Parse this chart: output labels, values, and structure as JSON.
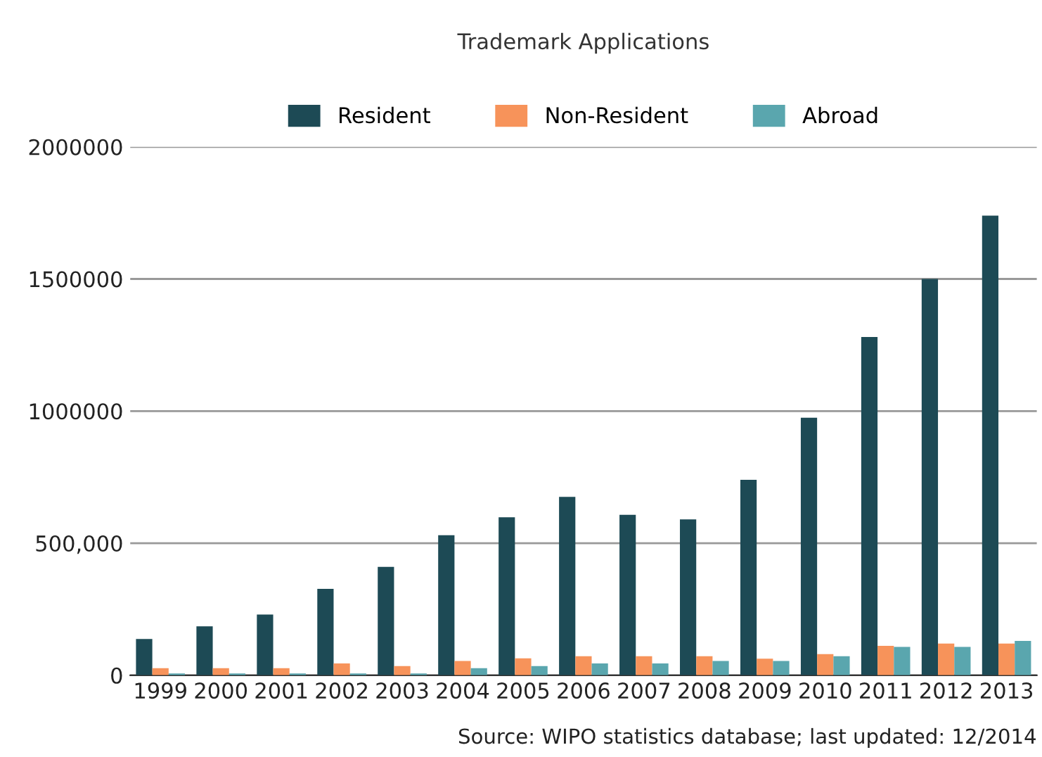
{
  "chart_data": {
    "type": "bar",
    "title": "Trademark Applications",
    "categories": [
      "1999",
      "2000",
      "2001",
      "2002",
      "2003",
      "2004",
      "2005",
      "2006",
      "2007",
      "2008",
      "2009",
      "2010",
      "2011",
      "2012",
      "2013"
    ],
    "series": [
      {
        "name": "Resident",
        "color": "#1d4a55",
        "values": [
          137000,
          185000,
          230000,
          327000,
          410000,
          530000,
          598000,
          675000,
          607000,
          590000,
          740000,
          975000,
          1280000,
          1500000,
          1740000
        ]
      },
      {
        "name": "Non-Resident",
        "color": "#f7935a",
        "values": [
          27000,
          27000,
          27000,
          45000,
          35000,
          54000,
          64000,
          72000,
          72000,
          72000,
          63000,
          80000,
          111000,
          120000,
          120000
        ]
      },
      {
        "name": "Abroad",
        "color": "#5aa6ae",
        "values": [
          7000,
          7000,
          7000,
          7000,
          7000,
          27000,
          35000,
          45000,
          45000,
          54000,
          54000,
          72000,
          107000,
          107000,
          130000
        ]
      }
    ],
    "ylim": [
      0,
      2000000
    ],
    "yticks": [
      0,
      {
        "value": 500000,
        "label": "500,000"
      },
      1000000,
      1500000,
      2000000
    ],
    "grid": "y",
    "legend": "top",
    "annotations": [
      "Source: WIPO statistics database; last updated: 12/2014"
    ]
  }
}
